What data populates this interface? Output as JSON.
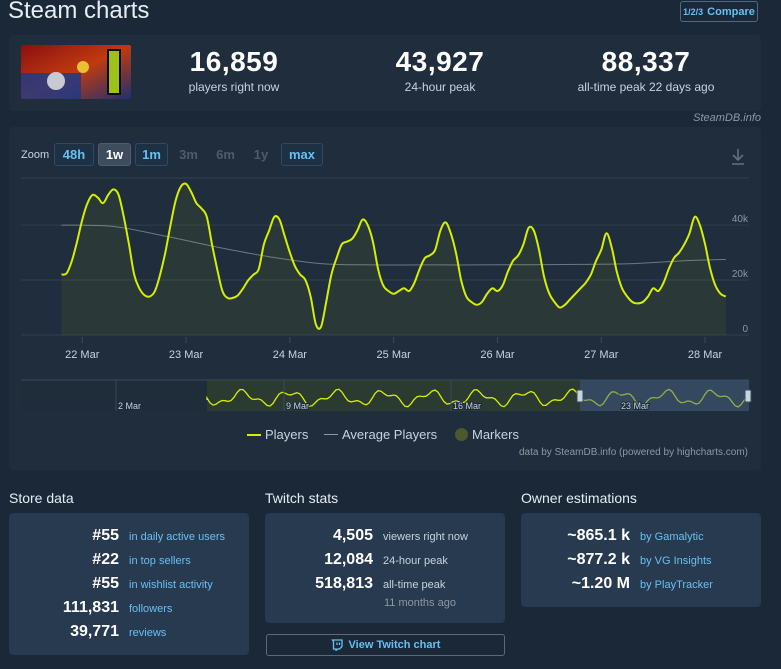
{
  "header": {
    "title": "Steam charts",
    "compare_label": "Compare",
    "compare_icon": "1/2/3"
  },
  "stats": [
    {
      "value": "16,859",
      "label": "players right now"
    },
    {
      "value": "43,927",
      "label": "24-hour peak"
    },
    {
      "value": "88,337",
      "label": "all-time peak 22 days ago"
    }
  ],
  "credit": "SteamDB.info",
  "zoom": {
    "label": "Zoom",
    "buttons": [
      {
        "label": "48h",
        "state": "on"
      },
      {
        "label": "1w",
        "state": "selected"
      },
      {
        "label": "1m",
        "state": "on"
      },
      {
        "label": "3m",
        "state": "off"
      },
      {
        "label": "6m",
        "state": "off"
      },
      {
        "label": "1y",
        "state": "off"
      },
      {
        "label": "max",
        "state": "on"
      }
    ]
  },
  "chart_data": {
    "type": "line",
    "x_labels": [
      "22 Mar",
      "23 Mar",
      "24 Mar",
      "25 Mar",
      "26 Mar",
      "27 Mar",
      "28 Mar"
    ],
    "y_ticks": [
      "0",
      "20k",
      "40k"
    ],
    "ylim": [
      0,
      60000
    ],
    "series": [
      {
        "name": "Players",
        "color": "#d4f000",
        "x": [
          0,
          0.05,
          0.1,
          0.15,
          0.2,
          0.25,
          0.3,
          0.35,
          0.4,
          0.45,
          0.5,
          0.55,
          0.6,
          0.65,
          0.7,
          0.75,
          0.8,
          0.85,
          0.9,
          0.95,
          1.0,
          1.05,
          1.1,
          1.15,
          1.2,
          1.25,
          1.3,
          1.35,
          1.4,
          1.45,
          1.5,
          1.55,
          1.6,
          1.65,
          1.7,
          1.75,
          1.8,
          1.85,
          1.9,
          1.95,
          2.0,
          2.05,
          2.1,
          2.15,
          2.2,
          2.25,
          2.3,
          2.35,
          2.4,
          2.45,
          2.5,
          2.55,
          2.6,
          2.65,
          2.7,
          2.75,
          2.8,
          2.85,
          2.9,
          2.95,
          3.0,
          3.05,
          3.1,
          3.15,
          3.2,
          3.25,
          3.3,
          3.35,
          3.4,
          3.45,
          3.5,
          3.55,
          3.6,
          3.65,
          3.7,
          3.75,
          3.8,
          3.85,
          3.9,
          3.95,
          4.0,
          4.05,
          4.1,
          4.15,
          4.2,
          4.25,
          4.3,
          4.35,
          4.4,
          4.45,
          4.5,
          4.55,
          4.6,
          4.65,
          4.7,
          4.75,
          4.8,
          4.85,
          4.9,
          4.95,
          5.0,
          5.05,
          5.1,
          5.15,
          5.2,
          5.25,
          5.3,
          5.35,
          5.4,
          5.45,
          5.5,
          5.55,
          5.6,
          5.65,
          5.7,
          5.75,
          5.8,
          5.85,
          5.9,
          5.95,
          6.0,
          6.05,
          6.1,
          6.15,
          6.2,
          6.25,
          6.3,
          6.35,
          6.4
        ],
        "values": [
          22000,
          22500,
          27000,
          34000,
          42000,
          48000,
          51000,
          50000,
          48000,
          51000,
          53000,
          51000,
          43000,
          33000,
          22000,
          17000,
          14500,
          14000,
          16000,
          22000,
          30000,
          40000,
          49000,
          54000,
          55000,
          52000,
          48000,
          46000,
          43000,
          33000,
          24000,
          16000,
          13500,
          13500,
          14500,
          17000,
          20000,
          22000,
          24000,
          33000,
          38000,
          43000,
          42000,
          36000,
          30000,
          25000,
          22000,
          20000,
          14000,
          4000,
          3000,
          12000,
          22000,
          28000,
          33000,
          34000,
          35000,
          38000,
          42000,
          40000,
          34000,
          24000,
          18000,
          16000,
          15000,
          16000,
          17000,
          16000,
          19000,
          24000,
          28000,
          29000,
          31000,
          38000,
          41000,
          37000,
          30000,
          20000,
          14000,
          12000,
          11000,
          12000,
          15000,
          17000,
          16000,
          18000,
          23000,
          27000,
          29000,
          33000,
          39000,
          38000,
          31000,
          21000,
          15000,
          12000,
          10000,
          11000,
          13000,
          15000,
          17000,
          19000,
          22000,
          27000,
          31000,
          37000,
          32000,
          23000,
          17000,
          14000,
          12000,
          11500,
          12000,
          14000,
          17000,
          16000,
          19000,
          24000,
          28000,
          30000,
          33000,
          37000,
          43000,
          40000,
          33000,
          24000,
          18000,
          15000,
          14000
        ]
      },
      {
        "name": "Average Players",
        "color": "#8f98a0",
        "x": [
          0,
          0.5,
          1.0,
          1.5,
          2.0,
          2.5,
          3.0,
          3.5,
          4.0,
          4.5,
          5.0,
          5.5,
          6.0,
          6.4
        ],
        "values": [
          40000,
          39500,
          36000,
          32000,
          28500,
          26000,
          25500,
          25500,
          25500,
          25600,
          25700,
          26000,
          27000,
          27500
        ]
      }
    ],
    "navigator": {
      "x_labels": [
        "2 Mar",
        "9 Mar",
        "16 Mar",
        "23 Mar"
      ]
    },
    "legend": [
      {
        "name": "Players",
        "color": "#d4f000"
      },
      {
        "name": "Average Players",
        "color": "#8f98a0"
      },
      {
        "name": "Markers",
        "color": "#4a5a2c"
      }
    ],
    "credit": "data by SteamDB.info (powered by highcharts.com)"
  },
  "store": {
    "title": "Store data",
    "rows": [
      {
        "value": "#55",
        "label": "in daily active users"
      },
      {
        "value": "#22",
        "label": "in top sellers"
      },
      {
        "value": "#55",
        "label": "in wishlist activity"
      },
      {
        "value": "111,831",
        "label": "followers"
      },
      {
        "value": "39,771",
        "label": "reviews"
      }
    ]
  },
  "twitch": {
    "title": "Twitch stats",
    "rows": [
      {
        "value": "4,505",
        "label": "viewers right now"
      },
      {
        "value": "12,084",
        "label": "24-hour peak"
      },
      {
        "value": "518,813",
        "label": "all-time peak"
      }
    ],
    "sub": "11 months ago",
    "button_label": "View Twitch chart"
  },
  "owners": {
    "title": "Owner estimations",
    "rows": [
      {
        "value": "~865.1 k",
        "label": "by Gamalytic"
      },
      {
        "value": "~877.2 k",
        "label": "by VG Insights"
      },
      {
        "value": "~1.20 M",
        "label": "by PlayTracker"
      }
    ]
  }
}
